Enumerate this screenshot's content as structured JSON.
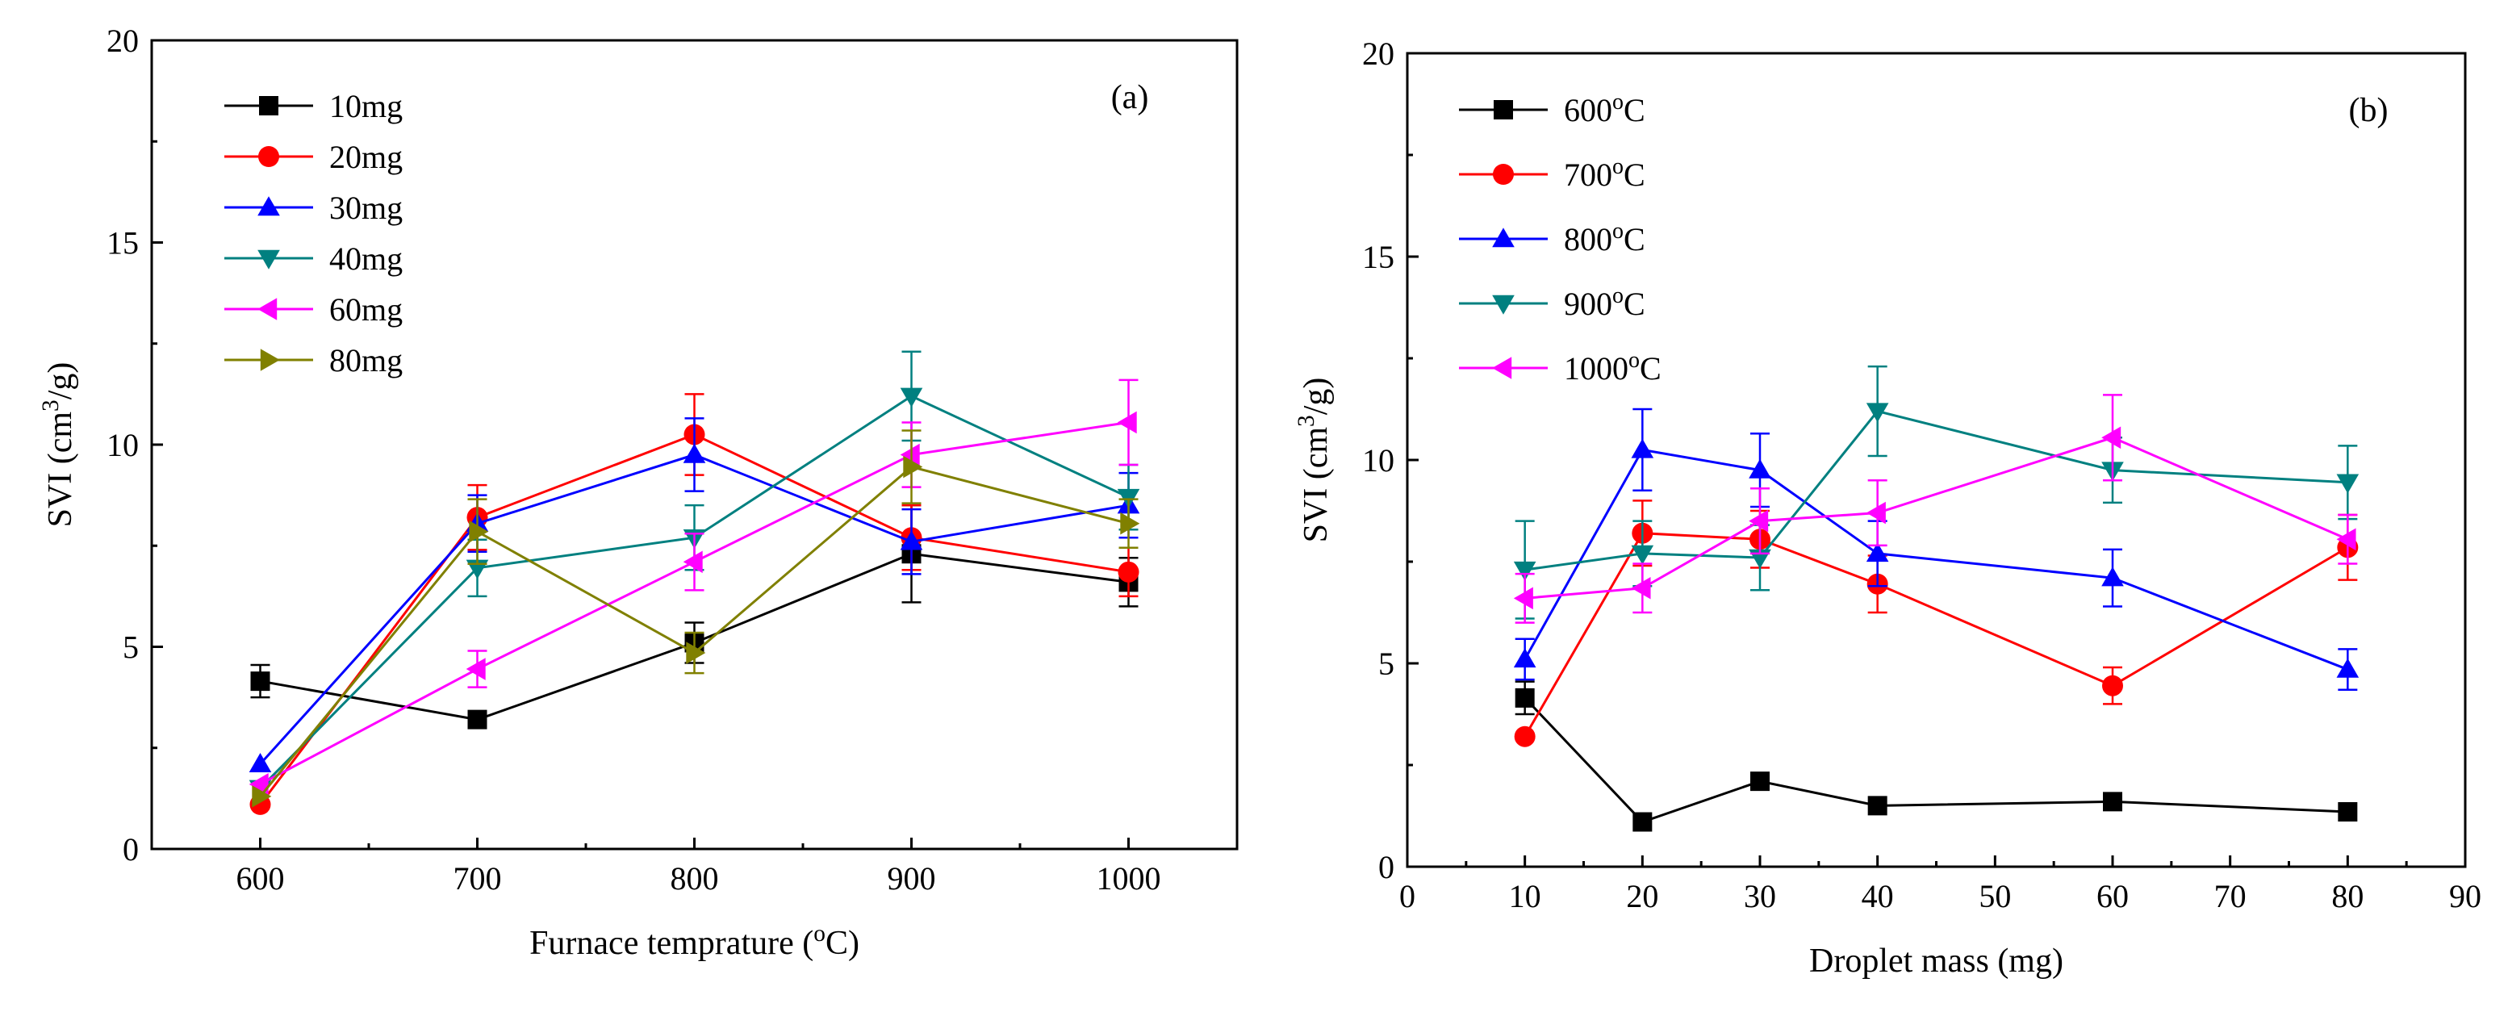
{
  "chart_data": [
    {
      "panel": "(a)",
      "type": "line",
      "xlabel": "Furnace temprature (°C)",
      "xlabel_parts": [
        "Furnace temprature (",
        "o",
        "C)"
      ],
      "ylabel": "SVI (cm³/g)",
      "ylabel_parts": [
        "SVI (cm",
        "3",
        "/g)"
      ],
      "xlim": [
        550,
        1050
      ],
      "ylim": [
        0,
        20
      ],
      "xticks": [
        600,
        700,
        800,
        900,
        1000
      ],
      "yticks": [
        0,
        5,
        10,
        15,
        20
      ],
      "x": [
        600,
        700,
        800,
        900,
        1000
      ],
      "legend_position": "top-left",
      "series": [
        {
          "name": "10mg",
          "color": "#000000",
          "marker": "square",
          "values": [
            4.15,
            3.2,
            5.1,
            7.3,
            6.6
          ],
          "errors": [
            0.4,
            0.0,
            0.5,
            1.2,
            0.6
          ]
        },
        {
          "name": "20mg",
          "color": "#ff0000",
          "marker": "circle",
          "values": [
            1.1,
            8.2,
            10.25,
            7.7,
            6.85
          ],
          "errors": [
            0.0,
            0.8,
            1.0,
            0.8,
            0.6
          ]
        },
        {
          "name": "30mg",
          "color": "#0000ff",
          "marker": "triangle-up",
          "values": [
            2.1,
            8.05,
            9.75,
            7.6,
            8.5
          ],
          "errors": [
            0.0,
            0.7,
            0.9,
            0.8,
            0.8
          ]
        },
        {
          "name": "40mg",
          "color": "#008080",
          "marker": "triangle-down",
          "values": [
            1.5,
            6.95,
            7.7,
            11.2,
            8.7
          ],
          "errors": [
            0.0,
            0.7,
            0.8,
            1.1,
            0.8
          ]
        },
        {
          "name": "60mg",
          "color": "#ff00ff",
          "marker": "triangle-left",
          "values": [
            1.6,
            4.45,
            7.1,
            9.75,
            10.55
          ],
          "errors": [
            0.0,
            0.45,
            0.7,
            0.8,
            1.05
          ]
        },
        {
          "name": "80mg",
          "color": "#808000",
          "marker": "triangle-right",
          "values": [
            1.3,
            7.85,
            4.85,
            9.45,
            8.05
          ],
          "errors": [
            0.0,
            0.8,
            0.5,
            0.9,
            0.6
          ]
        }
      ]
    },
    {
      "panel": "(b)",
      "type": "line",
      "xlabel": "Droplet mass (mg)",
      "ylabel": "SVI (cm³/g)",
      "ylabel_parts": [
        "SVI (cm",
        "3",
        "/g)"
      ],
      "xlim": [
        0,
        90
      ],
      "ylim": [
        0,
        20
      ],
      "xticks": [
        0,
        10,
        20,
        30,
        40,
        50,
        60,
        70,
        80,
        90
      ],
      "yticks": [
        0,
        5,
        10,
        15,
        20
      ],
      "x": [
        10,
        20,
        30,
        40,
        60,
        80
      ],
      "legend_position": "top-left",
      "series": [
        {
          "name": "600°C",
          "name_parts": [
            "600",
            "o",
            "C"
          ],
          "color": "#000000",
          "marker": "square",
          "values": [
            4.15,
            1.1,
            2.1,
            1.5,
            1.6,
            1.35
          ],
          "errors": [
            0.4,
            0,
            0,
            0,
            0,
            0
          ]
        },
        {
          "name": "700°C",
          "name_parts": [
            "700",
            "o",
            "C"
          ],
          "color": "#ff0000",
          "marker": "circle",
          "values": [
            3.2,
            8.2,
            8.05,
            6.95,
            4.45,
            7.85
          ],
          "errors": [
            0,
            0.8,
            0.7,
            0.7,
            0.45,
            0.8
          ]
        },
        {
          "name": "800°C",
          "name_parts": [
            "800",
            "o",
            "C"
          ],
          "color": "#0000ff",
          "marker": "triangle-up",
          "values": [
            5.1,
            10.25,
            9.75,
            7.7,
            7.1,
            4.85
          ],
          "errors": [
            0.5,
            1.0,
            0.9,
            0.8,
            0.7,
            0.5
          ]
        },
        {
          "name": "900°C",
          "name_parts": [
            "900",
            "o",
            "C"
          ],
          "color": "#008080",
          "marker": "triangle-down",
          "values": [
            7.3,
            7.7,
            7.6,
            11.2,
            9.75,
            9.45
          ],
          "errors": [
            1.2,
            0.8,
            0.8,
            1.1,
            0.8,
            0.9
          ]
        },
        {
          "name": "1000°C",
          "name_parts": [
            "1000",
            "o",
            "C"
          ],
          "color": "#ff00ff",
          "marker": "triangle-left",
          "values": [
            6.6,
            6.85,
            8.5,
            8.7,
            10.55,
            8.05
          ],
          "errors": [
            0.6,
            0.6,
            0.8,
            0.8,
            1.05,
            0.6
          ]
        }
      ]
    }
  ]
}
